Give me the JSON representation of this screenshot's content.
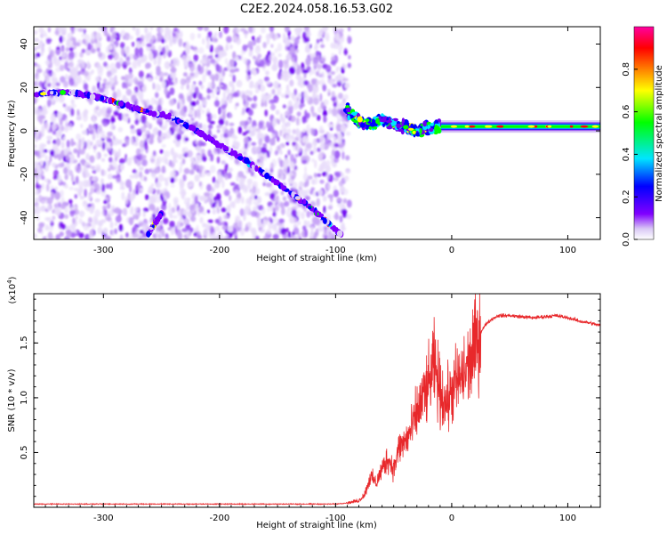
{
  "figure_title": "C2E2.2024.058.16.53.G02",
  "chart_data": [
    {
      "type": "heatmap",
      "title": "C2E2.2024.058.16.53.G02",
      "xlabel": "Height of straight line (km)",
      "ylabel": "Frequency (Hz)",
      "xlim": [
        -360,
        128
      ],
      "ylim": [
        -50,
        48
      ],
      "xticks": [
        -300,
        -200,
        -100,
        0,
        100
      ],
      "yticks": [
        -40,
        -20,
        0,
        20,
        40
      ],
      "colorbar": {
        "label": "Normalized spectral amplitude",
        "range": [
          0.0,
          1.0
        ],
        "ticks": [
          0.0,
          0.2,
          0.4,
          0.6,
          0.8
        ],
        "colormap": [
          "#ffffff",
          "#d9c8f5",
          "#8000ff",
          "#0000ff",
          "#00e5ff",
          "#00ff00",
          "#ffff00",
          "#ff8000",
          "#ff0000",
          "#ff00a0"
        ]
      },
      "features": [
        {
          "name": "diffuse scattering region",
          "x_range": [
            -360,
            -88
          ],
          "y_range": [
            -50,
            48
          ],
          "amplitude": 0.15
        },
        {
          "name": "curved track",
          "points": [
            [
              -360,
              17
            ],
            [
              -330,
              18
            ],
            [
              -300,
              15
            ],
            [
              -270,
              10
            ],
            [
              -240,
              6
            ],
            [
              -210,
              -3
            ],
            [
              -180,
              -13
            ],
            [
              -150,
              -24
            ],
            [
              -120,
              -36
            ],
            [
              -95,
              -48
            ]
          ],
          "amplitude": 0.35
        },
        {
          "name": "short streak",
          "points": [
            [
              -262,
              -48
            ],
            [
              -250,
              -38
            ]
          ],
          "amplitude": 0.3
        },
        {
          "name": "direct signal turbulent",
          "points": [
            [
              -90,
              10
            ],
            [
              -80,
              4
            ],
            [
              -70,
              3
            ],
            [
              -60,
              5
            ],
            [
              -50,
              3
            ],
            [
              -40,
              2
            ],
            [
              -30,
              0
            ],
            [
              -20,
              1
            ],
            [
              -10,
              2
            ]
          ],
          "amplitude": 0.55
        },
        {
          "name": "direct signal steady",
          "points": [
            [
              -10,
              2
            ],
            [
              0,
              1
            ],
            [
              30,
              1
            ],
            [
              60,
              1
            ],
            [
              90,
              1
            ],
            [
              128,
              1
            ]
          ],
          "amplitude": 0.6
        }
      ]
    },
    {
      "type": "line",
      "xlabel": "Height of straight line (km)",
      "ylabel": "SNR (10 * v/v)",
      "scale_label": "(x10",
      "scale_exponent": "4",
      "scale_close": ")",
      "xlim": [
        -360,
        128
      ],
      "ylim": [
        0,
        1.95
      ],
      "xticks": [
        -300,
        -200,
        -100,
        0,
        100
      ],
      "yticks": [
        0.5,
        1.0,
        1.5
      ],
      "ytick_labels": [
        "0.5",
        "1.0",
        "1.5"
      ],
      "color": "#e8282b",
      "series": [
        {
          "x": [
            -360,
            -300,
            -200,
            -150,
            -100,
            -90,
            -80,
            -75,
            -70,
            -65,
            -60,
            -55,
            -50,
            -45,
            -40,
            -35,
            -30,
            -25,
            -20,
            -15,
            -10,
            -5,
            0,
            5,
            10,
            15,
            20,
            25,
            30,
            35,
            40,
            50,
            60,
            70,
            80,
            90,
            100,
            110,
            120,
            128
          ],
          "y": [
            0.03,
            0.03,
            0.03,
            0.03,
            0.03,
            0.04,
            0.06,
            0.12,
            0.28,
            0.22,
            0.35,
            0.45,
            0.35,
            0.55,
            0.6,
            0.7,
            0.85,
            1.0,
            1.1,
            1.3,
            1.05,
            0.95,
            1.05,
            1.15,
            1.2,
            1.3,
            1.45,
            1.6,
            1.68,
            1.72,
            1.75,
            1.75,
            1.74,
            1.73,
            1.74,
            1.75,
            1.73,
            1.7,
            1.68,
            1.66
          ]
        }
      ]
    }
  ]
}
